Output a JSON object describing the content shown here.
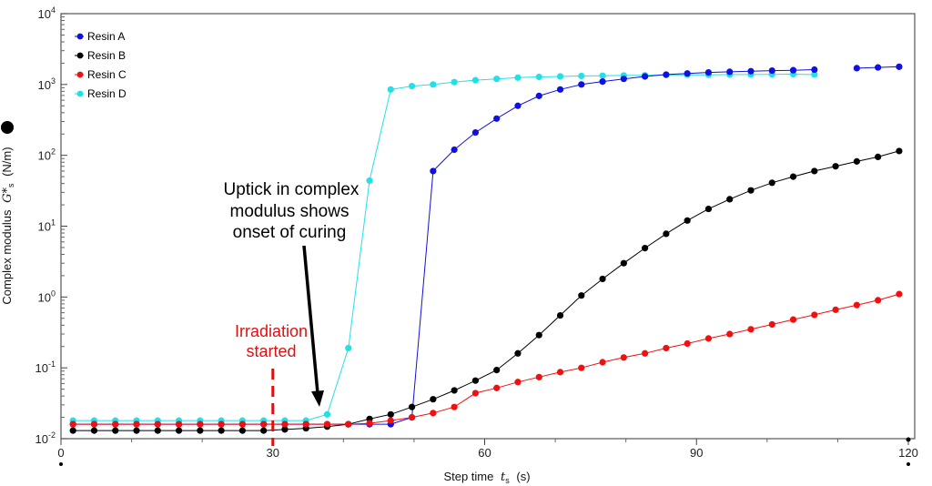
{
  "chart_data": {
    "type": "scatter",
    "xlabel": "Step time",
    "xlabel_symbol": "t",
    "xlabel_sub": "s",
    "xlabel_unit": "(s)",
    "ylabel": "Complex modulus",
    "ylabel_symbol": "G*",
    "ylabel_sub": "s",
    "ylabel_unit": "(N/m)",
    "xlim": [
      0,
      120
    ],
    "ylim": [
      0.01,
      10000
    ],
    "yscale": "log",
    "xticks": [
      "0",
      "30",
      "60",
      "90",
      "120"
    ],
    "yticks": [
      {
        "base": "10",
        "exp": "-2"
      },
      {
        "base": "10",
        "exp": "-1"
      },
      {
        "base": "10",
        "exp": "0"
      },
      {
        "base": "10",
        "exp": "1"
      },
      {
        "base": "10",
        "exp": "2"
      },
      {
        "base": "10",
        "exp": "3"
      },
      {
        "base": "10",
        "exp": "4"
      }
    ],
    "grid": false,
    "legend_position": "top-left",
    "x": [
      1.7,
      4.7,
      7.7,
      10.7,
      13.7,
      16.7,
      19.7,
      22.7,
      25.7,
      28.7,
      31.7,
      34.7,
      37.7,
      40.7,
      43.7,
      46.7,
      49.7,
      52.7,
      55.7,
      58.7,
      61.7,
      64.7,
      67.7,
      70.7,
      73.7,
      76.7,
      79.7,
      82.7,
      85.7,
      88.7,
      91.7,
      94.7,
      97.7,
      100.7,
      103.7,
      106.7,
      109.7,
      112.7,
      115.7,
      118.7
    ],
    "series": [
      {
        "name": "Resin D",
        "color": "#22e0e8",
        "values": [
          0.018,
          0.018,
          0.018,
          0.018,
          0.018,
          0.018,
          0.018,
          0.018,
          0.018,
          0.018,
          0.018,
          0.018,
          0.022,
          0.19,
          44,
          850,
          950,
          1000,
          1080,
          1150,
          1200,
          1250,
          1280,
          1300,
          1320,
          1330,
          1340,
          1350,
          1360,
          1370,
          1370,
          1380,
          1380,
          1390,
          1400,
          1380,
          null,
          null,
          null,
          null
        ]
      },
      {
        "name": "Resin A",
        "color": "#1010e0",
        "values": [
          0.016,
          0.016,
          0.016,
          0.016,
          0.016,
          0.016,
          0.016,
          0.016,
          0.016,
          0.016,
          0.016,
          0.016,
          0.016,
          0.016,
          0.016,
          0.016,
          0.02,
          60,
          120,
          210,
          330,
          500,
          690,
          850,
          1000,
          1100,
          1200,
          1300,
          1380,
          1430,
          1480,
          1510,
          1540,
          1570,
          1590,
          1620,
          null,
          1700,
          1740,
          1780
        ]
      },
      {
        "name": "Resin B",
        "color": "#000000",
        "values": [
          0.013,
          0.013,
          0.013,
          0.013,
          0.013,
          0.013,
          0.013,
          0.013,
          0.013,
          0.013,
          0.0135,
          0.014,
          0.0148,
          0.016,
          0.019,
          0.022,
          0.028,
          0.036,
          0.048,
          0.066,
          0.093,
          0.16,
          0.29,
          0.55,
          1.05,
          1.8,
          3.0,
          4.9,
          7.8,
          12,
          17.5,
          24,
          32,
          41,
          50,
          60,
          70,
          82,
          95,
          115
        ]
      },
      {
        "name": "Resin C",
        "color": "#f01010",
        "values": [
          0.016,
          0.016,
          0.016,
          0.016,
          0.016,
          0.016,
          0.016,
          0.016,
          0.016,
          0.016,
          0.016,
          0.016,
          0.016,
          0.016,
          0.0165,
          0.018,
          0.02,
          0.023,
          0.028,
          0.044,
          0.052,
          0.063,
          0.074,
          0.087,
          0.1,
          0.12,
          0.14,
          0.16,
          0.19,
          0.22,
          0.26,
          0.3,
          0.35,
          0.41,
          0.48,
          0.56,
          0.66,
          0.77,
          0.9,
          1.1
        ]
      }
    ],
    "annotations": {
      "uptick": [
        "Uptick in complex",
        "modulus shows",
        "onset of curing"
      ],
      "irradiation": [
        "Irradiation",
        "started"
      ],
      "irradiation_time": 30
    }
  }
}
